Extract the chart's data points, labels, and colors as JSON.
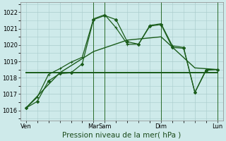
{
  "bg_color": "#ceeaea",
  "grid_color": "#aacccc",
  "line_color": "#1a5c1a",
  "xlabel": "Pression niveau de la mer( hPa )",
  "xlabel_fontsize": 7.5,
  "ytick_fontsize": 6,
  "xtick_fontsize": 6,
  "yticks": [
    1016,
    1017,
    1018,
    1019,
    1020,
    1021,
    1022
  ],
  "ylim": [
    1015.4,
    1022.6
  ],
  "xlim": [
    -0.5,
    17.5
  ],
  "xtick_labels": [
    "Ven",
    "",
    "Mar",
    "Sam",
    "",
    "Dim",
    "",
    "Lun"
  ],
  "xtick_positions": [
    0,
    3,
    6,
    7,
    10,
    12,
    15,
    17
  ],
  "series": [
    {
      "x": [
        0,
        1,
        2,
        3,
        4,
        5,
        6,
        7,
        8,
        9,
        10,
        11,
        12,
        13,
        14,
        15,
        16,
        17
      ],
      "y": [
        1016.15,
        1016.55,
        1017.8,
        1018.25,
        1018.3,
        1018.85,
        1021.55,
        1021.8,
        1021.55,
        1020.2,
        1020.05,
        1021.15,
        1021.25,
        1019.85,
        1019.8,
        1017.1,
        1018.45,
        1018.5
      ],
      "marker": "D",
      "markersize": 2.2,
      "linewidth": 0.9
    },
    {
      "x": [
        0,
        1,
        2,
        3,
        4,
        5,
        6,
        7,
        8,
        9,
        10,
        11,
        12,
        13,
        14,
        15,
        16,
        17
      ],
      "y": [
        1016.15,
        1016.8,
        1018.2,
        1018.55,
        1018.95,
        1019.25,
        1021.6,
        1021.85,
        1021.05,
        1020.05,
        1020.05,
        1021.2,
        1021.3,
        1019.95,
        1019.85,
        1017.1,
        1018.5,
        1018.5
      ],
      "marker": "+",
      "markersize": 3.5,
      "linewidth": 0.9
    },
    {
      "x": [
        0,
        17
      ],
      "y": [
        1018.3,
        1018.3
      ],
      "marker": null,
      "markersize": 0,
      "linewidth": 1.4
    },
    {
      "x": [
        0,
        3,
        6,
        9,
        12,
        15,
        17
      ],
      "y": [
        1016.15,
        1018.3,
        1019.6,
        1020.3,
        1020.5,
        1018.6,
        1018.5
      ],
      "marker": null,
      "markersize": 0,
      "linewidth": 1.0
    }
  ],
  "vline_positions": [
    6,
    7,
    12,
    17
  ],
  "vline_color": "#2a6b2a",
  "vline_linewidth": 0.7,
  "spine_color": "#888888"
}
